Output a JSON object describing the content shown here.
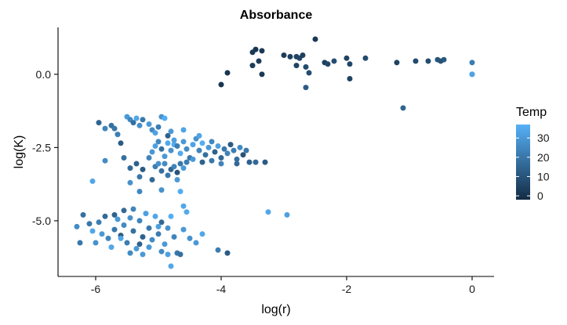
{
  "chart_data": {
    "type": "scatter",
    "title": "Absorbance",
    "xlabel": "log(r)",
    "ylabel": "log(K)",
    "xlim": [
      -6.6,
      0.35
    ],
    "ylim": [
      -6.9,
      1.6
    ],
    "x_ticks": [
      -6,
      -4,
      -2,
      0
    ],
    "x_tick_labels": [
      "-6",
      "-4",
      "-2",
      "0"
    ],
    "y_ticks": [
      0,
      -2.5,
      -5
    ],
    "y_tick_labels": [
      "0.0",
      "-2.5",
      "-5.0"
    ],
    "grid": false,
    "color": {
      "variable": "Temp",
      "legend_title": "Temp",
      "legend_position": "right",
      "range": [
        -2,
        37
      ],
      "ticks": [
        0,
        10,
        20,
        30
      ],
      "tick_labels": [
        "0",
        "10",
        "20",
        "30"
      ],
      "low_color": "#132B43",
      "high_color": "#56B1F7"
    },
    "series": [
      {
        "points": [
          [
            -2.5,
            1.2,
            2
          ],
          [
            -3.9,
            0.05,
            1
          ],
          [
            -4.0,
            -0.35,
            1
          ],
          [
            -3.45,
            0.85,
            1
          ],
          [
            -3.35,
            0.8,
            2
          ],
          [
            -3.5,
            0.75,
            2
          ],
          [
            -3.4,
            0.45,
            3
          ],
          [
            -3.5,
            0.3,
            3
          ],
          [
            -3.35,
            0.0,
            2
          ],
          [
            -3.0,
            0.65,
            3
          ],
          [
            -2.9,
            0.6,
            4
          ],
          [
            -2.8,
            0.6,
            5
          ],
          [
            -2.75,
            0.55,
            6
          ],
          [
            -2.7,
            0.65,
            4
          ],
          [
            -2.8,
            0.3,
            5
          ],
          [
            -2.65,
            0.25,
            7
          ],
          [
            -2.6,
            0.05,
            8
          ],
          [
            -2.65,
            -0.45,
            12
          ],
          [
            -2.35,
            0.4,
            4
          ],
          [
            -2.3,
            0.35,
            6
          ],
          [
            -2.2,
            0.45,
            8
          ],
          [
            -2.0,
            0.55,
            5
          ],
          [
            -1.95,
            0.35,
            6
          ],
          [
            -1.7,
            0.55,
            7
          ],
          [
            -1.95,
            -0.15,
            5
          ],
          [
            -1.2,
            0.4,
            5
          ],
          [
            -0.9,
            0.45,
            7
          ],
          [
            -0.7,
            0.45,
            8
          ],
          [
            -0.5,
            0.45,
            9
          ],
          [
            -0.55,
            0.5,
            10
          ],
          [
            -0.45,
            0.5,
            11
          ],
          [
            -1.1,
            -1.15,
            15
          ],
          [
            0.0,
            0.4,
            22
          ],
          [
            0.0,
            0.0,
            25
          ],
          [
            0.0,
            0.0,
            33
          ],
          [
            -5.95,
            -1.65,
            15
          ],
          [
            -5.85,
            -1.85,
            24
          ],
          [
            -5.75,
            -1.75,
            18
          ],
          [
            -5.7,
            -1.85,
            20
          ],
          [
            -5.65,
            -2.05,
            22
          ],
          [
            -5.6,
            -2.35,
            12
          ],
          [
            -5.5,
            -1.45,
            30
          ],
          [
            -5.45,
            -1.55,
            25
          ],
          [
            -5.4,
            -1.65,
            18
          ],
          [
            -5.35,
            -1.5,
            34
          ],
          [
            -5.3,
            -1.75,
            27
          ],
          [
            -5.25,
            -1.55,
            20
          ],
          [
            -5.15,
            -1.7,
            30
          ],
          [
            -5.1,
            -1.9,
            26
          ],
          [
            -5.05,
            -2.0,
            33
          ],
          [
            -5.0,
            -1.8,
            22
          ],
          [
            -4.95,
            -1.45,
            28
          ],
          [
            -4.9,
            -1.5,
            36
          ],
          [
            -4.85,
            -2.1,
            14
          ],
          [
            -4.8,
            -1.95,
            30
          ],
          [
            -4.75,
            -2.4,
            35
          ],
          [
            -4.6,
            -1.9,
            33
          ],
          [
            -5.85,
            -2.95,
            26
          ],
          [
            -5.55,
            -2.85,
            18
          ],
          [
            -5.45,
            -3.2,
            16
          ],
          [
            -5.35,
            -3.05,
            14
          ],
          [
            -5.3,
            -3.5,
            20
          ],
          [
            -5.25,
            -3.25,
            12
          ],
          [
            -5.15,
            -2.85,
            24
          ],
          [
            -5.05,
            -3.15,
            22
          ],
          [
            -5.0,
            -3.05,
            28
          ],
          [
            -4.95,
            -3.3,
            18
          ],
          [
            -4.9,
            -3.05,
            26
          ],
          [
            -4.85,
            -3.45,
            20
          ],
          [
            -4.8,
            -3.25,
            15
          ],
          [
            -4.75,
            -3.15,
            24
          ],
          [
            -4.7,
            -3.35,
            10
          ],
          [
            -4.65,
            -3.05,
            20
          ],
          [
            -4.6,
            -3.2,
            30
          ],
          [
            -6.05,
            -3.65,
            34
          ],
          [
            -5.45,
            -3.7,
            28
          ],
          [
            -5.3,
            -4.0,
            25
          ],
          [
            -5.1,
            -3.6,
            16
          ],
          [
            -4.95,
            -3.95,
            28
          ],
          [
            -4.7,
            -3.6,
            30
          ],
          [
            -4.65,
            -4.0,
            36
          ],
          [
            -4.6,
            -4.5,
            34
          ],
          [
            -5.1,
            -2.65,
            30
          ],
          [
            -5.05,
            -2.45,
            32
          ],
          [
            -5.0,
            -2.3,
            25
          ],
          [
            -4.95,
            -2.55,
            18
          ],
          [
            -4.9,
            -2.8,
            30
          ],
          [
            -4.85,
            -2.35,
            34
          ],
          [
            -4.8,
            -2.6,
            28
          ],
          [
            -4.75,
            -2.25,
            32
          ],
          [
            -4.7,
            -2.45,
            22
          ],
          [
            -4.65,
            -2.7,
            35
          ],
          [
            -4.6,
            -2.3,
            30
          ],
          [
            -4.55,
            -2.55,
            26
          ],
          [
            -4.5,
            -2.85,
            20
          ],
          [
            -4.45,
            -2.4,
            33
          ],
          [
            -4.4,
            -2.2,
            28
          ],
          [
            -4.35,
            -2.6,
            24
          ],
          [
            -4.3,
            -2.35,
            36
          ],
          [
            -4.25,
            -2.75,
            18
          ],
          [
            -4.2,
            -2.5,
            30
          ],
          [
            -4.15,
            -2.3,
            25
          ],
          [
            -4.1,
            -2.65,
            14
          ],
          [
            -4.05,
            -2.45,
            32
          ],
          [
            -4.0,
            -2.85,
            16
          ],
          [
            -3.95,
            -2.55,
            20
          ],
          [
            -3.9,
            -2.7,
            24
          ],
          [
            -3.85,
            -2.4,
            12
          ],
          [
            -3.8,
            -2.6,
            22
          ],
          [
            -3.75,
            -2.9,
            18
          ],
          [
            -3.7,
            -2.5,
            26
          ],
          [
            -3.65,
            -2.75,
            10
          ],
          [
            -3.6,
            -2.6,
            20
          ],
          [
            -3.55,
            -3.0,
            14
          ],
          [
            -3.45,
            -3.0,
            16
          ],
          [
            -3.3,
            -3.0,
            12
          ],
          [
            -4.35,
            -2.1,
            33
          ],
          [
            -4.45,
            -2.9,
            30
          ],
          [
            -4.55,
            -3.0,
            22
          ],
          [
            -4.3,
            -3.0,
            14
          ],
          [
            -4.15,
            -2.95,
            20
          ],
          [
            -4.0,
            -3.05,
            24
          ],
          [
            -3.75,
            -3.05,
            16
          ],
          [
            -3.25,
            -4.7,
            34
          ],
          [
            -2.95,
            -4.8,
            32
          ],
          [
            -6.3,
            -5.2,
            26
          ],
          [
            -6.2,
            -4.8,
            18
          ],
          [
            -6.25,
            -5.75,
            20
          ],
          [
            -6.05,
            -5.35,
            34
          ],
          [
            -6.0,
            -5.75,
            28
          ],
          [
            -5.95,
            -5.05,
            22
          ],
          [
            -5.9,
            -5.45,
            30
          ],
          [
            -5.85,
            -4.85,
            16
          ],
          [
            -5.8,
            -5.6,
            25
          ],
          [
            -5.75,
            -5.9,
            34
          ],
          [
            -5.7,
            -5.3,
            20
          ],
          [
            -5.65,
            -4.95,
            30
          ],
          [
            -5.6,
            -5.5,
            12
          ],
          [
            -5.55,
            -5.15,
            26
          ],
          [
            -5.5,
            -5.75,
            22
          ],
          [
            -5.45,
            -4.9,
            28
          ],
          [
            -5.4,
            -5.35,
            18
          ],
          [
            -5.35,
            -5.95,
            30
          ],
          [
            -5.3,
            -5.0,
            24
          ],
          [
            -5.25,
            -5.55,
            14
          ],
          [
            -5.2,
            -4.75,
            32
          ],
          [
            -5.15,
            -5.25,
            20
          ],
          [
            -5.1,
            -5.65,
            26
          ],
          [
            -5.05,
            -4.85,
            34
          ],
          [
            -5.0,
            -5.45,
            22
          ],
          [
            -4.95,
            -5.05,
            16
          ],
          [
            -4.9,
            -5.8,
            30
          ],
          [
            -4.85,
            -5.25,
            28
          ],
          [
            -4.8,
            -4.85,
            36
          ],
          [
            -4.75,
            -5.55,
            24
          ],
          [
            -4.7,
            -6.1,
            20
          ],
          [
            -4.65,
            -6.15,
            18
          ],
          [
            -4.6,
            -5.3,
            30
          ],
          [
            -4.55,
            -4.7,
            35
          ],
          [
            -4.5,
            -5.6,
            28
          ],
          [
            -4.4,
            -5.75,
            30
          ],
          [
            -4.3,
            -5.45,
            34
          ],
          [
            -4.05,
            -6.0,
            22
          ],
          [
            -3.9,
            -6.1,
            12
          ],
          [
            -5.7,
            -4.8,
            14
          ],
          [
            -5.55,
            -4.65,
            16
          ],
          [
            -5.4,
            -4.6,
            24
          ],
          [
            -5.3,
            -5.8,
            14
          ],
          [
            -5.15,
            -5.9,
            30
          ],
          [
            -5.0,
            -5.2,
            32
          ],
          [
            -4.95,
            -6.05,
            26
          ],
          [
            -4.85,
            -6.15,
            32
          ],
          [
            -4.8,
            -6.55,
            34
          ],
          [
            -5.45,
            -6.1,
            26
          ],
          [
            -5.25,
            -6.15,
            30
          ],
          [
            -5.6,
            -5.6,
            34
          ],
          [
            -6.1,
            -5.1,
            20
          ]
        ]
      }
    ]
  }
}
